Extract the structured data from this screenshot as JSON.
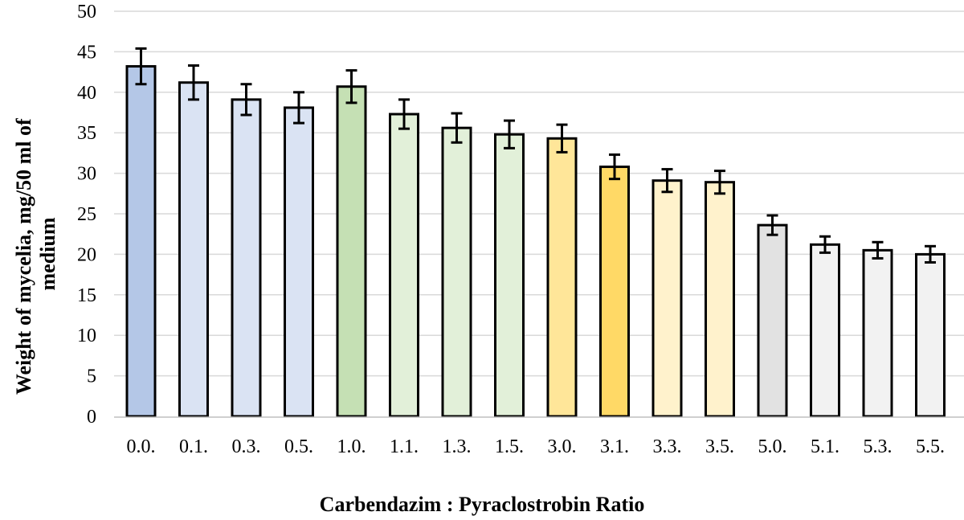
{
  "chart_data": {
    "type": "bar",
    "title": "",
    "xlabel": "Carbendazim : Pyraclostrobin Ratio",
    "ylabel_lines": [
      "Weight of mycelia, mg/50 ml of",
      "medium"
    ],
    "ylim": [
      0,
      50
    ],
    "yticks": [
      0,
      5,
      10,
      15,
      20,
      25,
      30,
      35,
      40,
      45,
      50
    ],
    "grid": true,
    "categories": [
      "0.0.",
      "0.1.",
      "0.3.",
      "0.5.",
      "1.0.",
      "1.1.",
      "1.3.",
      "1.5.",
      "3.0.",
      "3.1.",
      "3.3.",
      "3.5.",
      "5.0.",
      "5.1.",
      "5.3.",
      "5.5."
    ],
    "values": [
      43.2,
      41.2,
      39.1,
      38.1,
      40.7,
      37.3,
      35.6,
      34.8,
      34.3,
      30.8,
      29.1,
      28.9,
      23.6,
      21.2,
      20.5,
      20.0
    ],
    "errors": [
      2.2,
      2.1,
      1.9,
      1.9,
      2.0,
      1.8,
      1.8,
      1.7,
      1.7,
      1.5,
      1.4,
      1.4,
      1.2,
      1.0,
      1.0,
      1.0
    ],
    "colors": [
      "#b4c7e7",
      "#dae3f3",
      "#dae3f3",
      "#dae3f3",
      "#c5e0b4",
      "#e2f0d9",
      "#e2f0d9",
      "#e2f0d9",
      "#ffe699",
      "#ffd966",
      "#fff2cc",
      "#fff2cc",
      "#e2e2e2",
      "#f2f2f2",
      "#f2f2f2",
      "#f2f2f2"
    ]
  }
}
